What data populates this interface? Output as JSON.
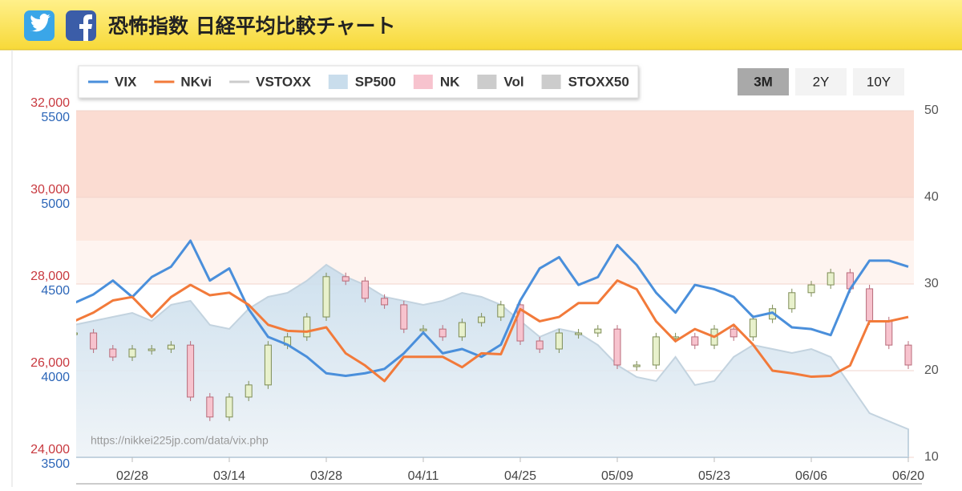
{
  "header": {
    "title": "恐怖指数 日経平均比較チャート"
  },
  "buttons": [
    "3M",
    "2Y",
    "10Y"
  ],
  "selected_button": 0,
  "watermark": "https://nikkei225jp.com/data/vix.php",
  "chart_data": {
    "type": "line",
    "categories": [
      null,
      null,
      null,
      "02/28",
      null,
      null,
      null,
      null,
      "03/14",
      null,
      null,
      null,
      null,
      "03/28",
      null,
      null,
      null,
      null,
      "04/11",
      null,
      null,
      null,
      null,
      "04/25",
      null,
      null,
      null,
      null,
      "05/09",
      null,
      null,
      null,
      null,
      "05/23",
      null,
      null,
      null,
      null,
      "06/06",
      null,
      null,
      null,
      null,
      "06/20"
    ],
    "ylim": [
      10,
      50
    ],
    "yticks": [
      10,
      20,
      30,
      40,
      50
    ],
    "y2lim": [
      3500,
      5500
    ],
    "y2ticks": [
      3500,
      4000,
      4500,
      5000,
      5500
    ],
    "y3lim": [
      24000,
      32000
    ],
    "y3ticks": [
      {
        "value": 24000,
        "label": "24,000"
      },
      {
        "value": 26000,
        "label": "26,000"
      },
      {
        "value": 28000,
        "label": "28,000"
      },
      {
        "value": 30000,
        "label": "30,000"
      },
      {
        "value": 32000,
        "label": "32,000"
      }
    ],
    "grid": true,
    "bands": [
      {
        "from": 40,
        "to": 50,
        "color": "#fbdcd2"
      },
      {
        "from": 35,
        "to": 40,
        "color": "#fde8e0"
      },
      {
        "from": 30,
        "to": 35,
        "color": "#fef4f0"
      }
    ],
    "series": [
      {
        "name": "VIX",
        "type": "line",
        "color": "#4a8fdb",
        "values": [
          27.8,
          28.8,
          30.4,
          28.5,
          30.8,
          32.0,
          35.0,
          30.4,
          31.8,
          27.1,
          23.9,
          23.0,
          21.6,
          19.7,
          19.4,
          19.7,
          20.2,
          22.0,
          24.4,
          22.0,
          22.5,
          21.6,
          23.0,
          28.1,
          31.8,
          33.1,
          29.9,
          30.8,
          34.5,
          32.2,
          29.0,
          26.7,
          29.9,
          29.4,
          28.5,
          26.2,
          26.7,
          25.0,
          24.8,
          24.1,
          29.4,
          32.7,
          32.7,
          32.0
        ]
      },
      {
        "name": "NKvi",
        "type": "line",
        "color": "#f27a3a",
        "values": [
          25.7,
          26.7,
          28.1,
          28.5,
          26.2,
          28.5,
          29.9,
          28.7,
          29.0,
          27.6,
          25.3,
          24.6,
          24.5,
          25.0,
          22.0,
          20.6,
          18.8,
          21.6,
          21.6,
          21.6,
          20.4,
          22.0,
          21.9,
          27.1,
          25.7,
          26.2,
          27.8,
          27.8,
          30.4,
          29.4,
          25.7,
          23.4,
          24.8,
          23.9,
          25.3,
          23.0,
          20.0,
          19.7,
          19.3,
          19.4,
          20.6,
          25.7,
          25.7,
          26.2
        ]
      },
      {
        "name": "VSTOXX",
        "type": "line",
        "color": "#cccccc",
        "hidden": true
      },
      {
        "name": "SP500",
        "type": "area",
        "axis": "y2",
        "color": "#c9ddec",
        "values": [
          4264,
          4287,
          4310,
          4333,
          4287,
          4380,
          4403,
          4264,
          4241,
          4357,
          4426,
          4449,
          4519,
          4611,
          4542,
          4495,
          4426,
          4403,
          4380,
          4403,
          4449,
          4426,
          4380,
          4287,
          4195,
          4241,
          4218,
          4148,
          4032,
          3963,
          3940,
          4079,
          3917,
          3940,
          4079,
          4148,
          4125,
          4102,
          4125,
          4079,
          3917,
          3755,
          3708,
          3662
        ]
      },
      {
        "name": "NK",
        "type": "candlestick",
        "axis": "y3",
        "color": "#f7c3ce",
        "values": [
          26870,
          26500,
          26315,
          26500,
          26500,
          26590,
          25390,
          24930,
          25390,
          25670,
          26590,
          26780,
          27240,
          28170,
          28070,
          27670,
          27520,
          26960,
          26960,
          26780,
          27110,
          27240,
          27520,
          26685,
          26500,
          26870,
          26870,
          26960,
          26130,
          26130,
          26780,
          26780,
          26590,
          26960,
          26780,
          27190,
          27430,
          27800,
          27980,
          28260,
          27890,
          27150,
          26590,
          26130
        ]
      },
      {
        "name": "Vol",
        "type": "bar",
        "color": "#cccccc",
        "hidden": true
      },
      {
        "name": "STOXX50",
        "type": "area",
        "color": "#cccccc",
        "hidden": true
      }
    ]
  }
}
